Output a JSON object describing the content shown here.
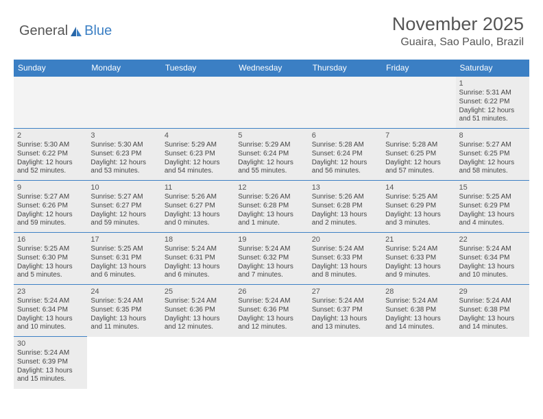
{
  "logo": {
    "text1": "General",
    "text2": "Blue"
  },
  "title": "November 2025",
  "location": "Guaira, Sao Paulo, Brazil",
  "colors": {
    "header_bg": "#3b7fc4",
    "cell_bg": "#ececec",
    "empty_bg": "#f3f3f3",
    "border": "#3b7fc4",
    "text": "#444"
  },
  "day_labels": [
    "Sunday",
    "Monday",
    "Tuesday",
    "Wednesday",
    "Thursday",
    "Friday",
    "Saturday"
  ],
  "first_weekday": 6,
  "days_in_month": 30,
  "days": {
    "1": {
      "sunrise": "5:31 AM",
      "sunset": "6:22 PM",
      "daylight": "12 hours and 51 minutes."
    },
    "2": {
      "sunrise": "5:30 AM",
      "sunset": "6:22 PM",
      "daylight": "12 hours and 52 minutes."
    },
    "3": {
      "sunrise": "5:30 AM",
      "sunset": "6:23 PM",
      "daylight": "12 hours and 53 minutes."
    },
    "4": {
      "sunrise": "5:29 AM",
      "sunset": "6:23 PM",
      "daylight": "12 hours and 54 minutes."
    },
    "5": {
      "sunrise": "5:29 AM",
      "sunset": "6:24 PM",
      "daylight": "12 hours and 55 minutes."
    },
    "6": {
      "sunrise": "5:28 AM",
      "sunset": "6:24 PM",
      "daylight": "12 hours and 56 minutes."
    },
    "7": {
      "sunrise": "5:28 AM",
      "sunset": "6:25 PM",
      "daylight": "12 hours and 57 minutes."
    },
    "8": {
      "sunrise": "5:27 AM",
      "sunset": "6:25 PM",
      "daylight": "12 hours and 58 minutes."
    },
    "9": {
      "sunrise": "5:27 AM",
      "sunset": "6:26 PM",
      "daylight": "12 hours and 59 minutes."
    },
    "10": {
      "sunrise": "5:27 AM",
      "sunset": "6:27 PM",
      "daylight": "12 hours and 59 minutes."
    },
    "11": {
      "sunrise": "5:26 AM",
      "sunset": "6:27 PM",
      "daylight": "13 hours and 0 minutes."
    },
    "12": {
      "sunrise": "5:26 AM",
      "sunset": "6:28 PM",
      "daylight": "13 hours and 1 minute."
    },
    "13": {
      "sunrise": "5:26 AM",
      "sunset": "6:28 PM",
      "daylight": "13 hours and 2 minutes."
    },
    "14": {
      "sunrise": "5:25 AM",
      "sunset": "6:29 PM",
      "daylight": "13 hours and 3 minutes."
    },
    "15": {
      "sunrise": "5:25 AM",
      "sunset": "6:29 PM",
      "daylight": "13 hours and 4 minutes."
    },
    "16": {
      "sunrise": "5:25 AM",
      "sunset": "6:30 PM",
      "daylight": "13 hours and 5 minutes."
    },
    "17": {
      "sunrise": "5:25 AM",
      "sunset": "6:31 PM",
      "daylight": "13 hours and 6 minutes."
    },
    "18": {
      "sunrise": "5:24 AM",
      "sunset": "6:31 PM",
      "daylight": "13 hours and 6 minutes."
    },
    "19": {
      "sunrise": "5:24 AM",
      "sunset": "6:32 PM",
      "daylight": "13 hours and 7 minutes."
    },
    "20": {
      "sunrise": "5:24 AM",
      "sunset": "6:33 PM",
      "daylight": "13 hours and 8 minutes."
    },
    "21": {
      "sunrise": "5:24 AM",
      "sunset": "6:33 PM",
      "daylight": "13 hours and 9 minutes."
    },
    "22": {
      "sunrise": "5:24 AM",
      "sunset": "6:34 PM",
      "daylight": "13 hours and 10 minutes."
    },
    "23": {
      "sunrise": "5:24 AM",
      "sunset": "6:34 PM",
      "daylight": "13 hours and 10 minutes."
    },
    "24": {
      "sunrise": "5:24 AM",
      "sunset": "6:35 PM",
      "daylight": "13 hours and 11 minutes."
    },
    "25": {
      "sunrise": "5:24 AM",
      "sunset": "6:36 PM",
      "daylight": "13 hours and 12 minutes."
    },
    "26": {
      "sunrise": "5:24 AM",
      "sunset": "6:36 PM",
      "daylight": "13 hours and 12 minutes."
    },
    "27": {
      "sunrise": "5:24 AM",
      "sunset": "6:37 PM",
      "daylight": "13 hours and 13 minutes."
    },
    "28": {
      "sunrise": "5:24 AM",
      "sunset": "6:38 PM",
      "daylight": "13 hours and 14 minutes."
    },
    "29": {
      "sunrise": "5:24 AM",
      "sunset": "6:38 PM",
      "daylight": "13 hours and 14 minutes."
    },
    "30": {
      "sunrise": "5:24 AM",
      "sunset": "6:39 PM",
      "daylight": "13 hours and 15 minutes."
    }
  },
  "labels": {
    "sunrise": "Sunrise: ",
    "sunset": "Sunset: ",
    "daylight": "Daylight: "
  }
}
